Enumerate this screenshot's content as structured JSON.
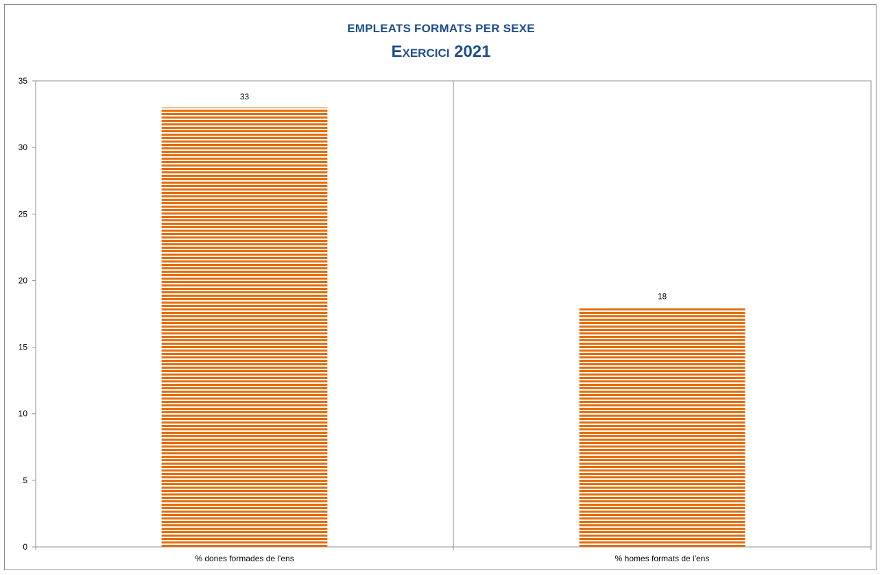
{
  "chart_data": {
    "type": "bar",
    "title": "EMPLEATS FORMATS PER SEXE",
    "subtitle": "Exercici 2021",
    "categories": [
      "% dones formades de l'ens",
      "% homes formats de l'ens"
    ],
    "values": [
      33,
      18
    ],
    "data_labels": [
      "33",
      "18"
    ],
    "y_ticks": [
      "0",
      "5",
      "10",
      "15",
      "20",
      "25",
      "30",
      "35"
    ],
    "ylim": [
      0,
      35
    ],
    "y_step": 5,
    "xlabel": "",
    "ylabel": "",
    "bar_color": "#e36c09",
    "grid": false,
    "legend": "none"
  }
}
